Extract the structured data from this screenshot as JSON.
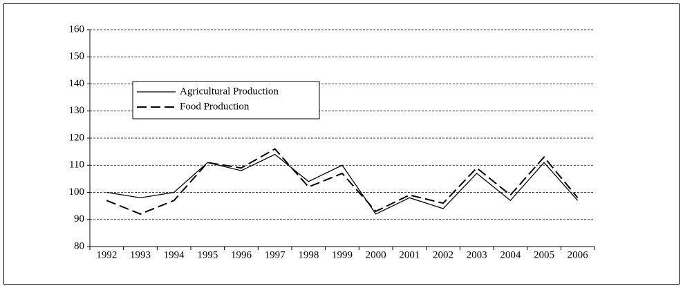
{
  "chart_data": {
    "type": "line",
    "categories": [
      "1992",
      "1993",
      "1994",
      "1995",
      "1996",
      "1997",
      "1998",
      "1999",
      "2000",
      "2001",
      "2002",
      "2003",
      "2004",
      "2005",
      "2006"
    ],
    "series": [
      {
        "name": "Agricultural Production",
        "color": "#000000",
        "style": "solid",
        "values": [
          100,
          98,
          100,
          111,
          108,
          114,
          104,
          110,
          92,
          98,
          94,
          107,
          97,
          111,
          97
        ]
      },
      {
        "name": "Food Production",
        "color": "#000000",
        "style": "dashed",
        "values": [
          97,
          92,
          97,
          111,
          109,
          116,
          102,
          107,
          93,
          99,
          96,
          109,
          99,
          113,
          98
        ]
      }
    ],
    "ylim": [
      80,
      160
    ],
    "yticks": [
      80,
      90,
      100,
      110,
      120,
      130,
      140,
      150,
      160
    ],
    "grid": true,
    "legend": "upper left"
  }
}
